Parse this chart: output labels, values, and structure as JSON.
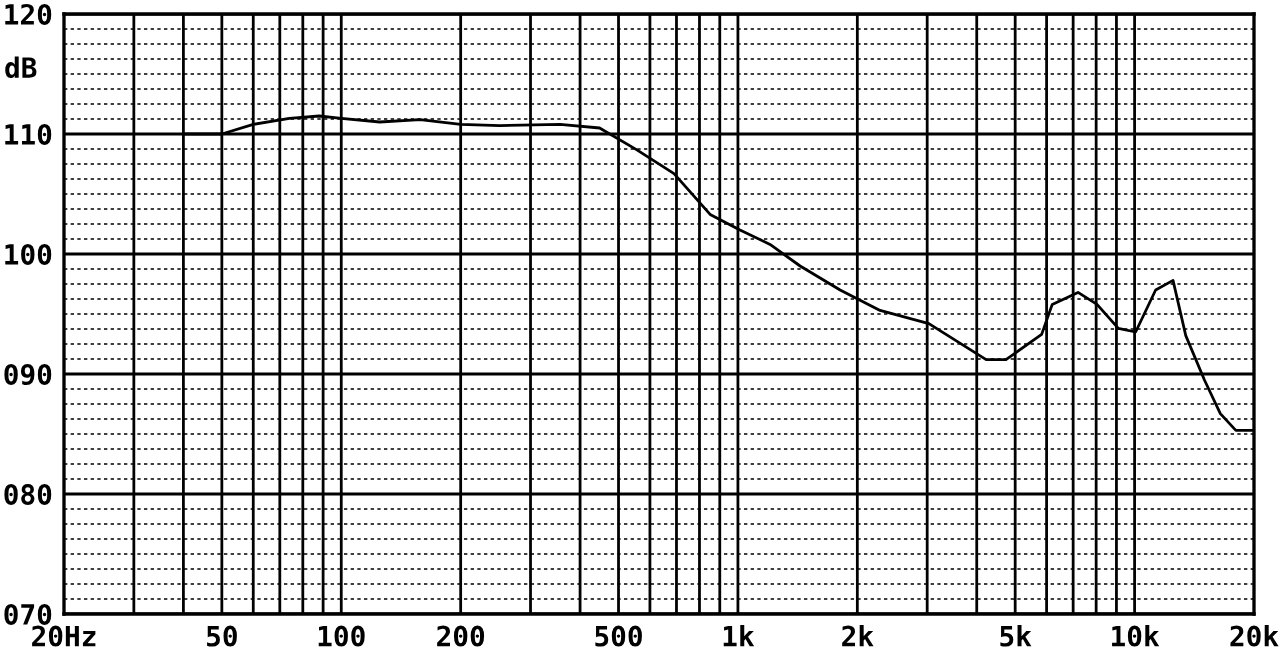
{
  "chart_data": {
    "type": "line",
    "ylabel": "dB",
    "log": "x",
    "x": [
      40,
      50,
      60,
      74,
      88,
      100,
      125,
      158,
      200,
      251,
      356,
      448,
      555,
      690,
      851,
      1012,
      1205,
      1435,
      1810,
      2282,
      3030,
      4225,
      4740,
      5830,
      6200,
      7200,
      8040,
      9100,
      10060,
      11300,
      12500,
      13460,
      15000,
      16450,
      18000,
      20000
    ],
    "series": [
      {
        "color": "#000000",
        "values": [
          110.0,
          110.0,
          110.8,
          111.3,
          111.5,
          111.3,
          111.0,
          111.2,
          110.8,
          110.7,
          110.8,
          110.5,
          108.7,
          106.7,
          103.3,
          102.0,
          100.8,
          99.0,
          97.0,
          95.3,
          94.2,
          91.2,
          91.2,
          93.3,
          95.8,
          96.8,
          95.8,
          93.8,
          93.5,
          97.0,
          97.8,
          93.2,
          89.5,
          86.7,
          85.3,
          85.3
        ]
      }
    ],
    "xlim": [
      20,
      20000
    ],
    "xticks": [
      {
        "value": 20,
        "label": "20Hz"
      },
      50,
      100,
      200,
      500,
      {
        "value": 1000,
        "label": "1k"
      },
      {
        "value": 2000,
        "label": "2k"
      },
      {
        "value": 5000,
        "label": "5k"
      },
      {
        "value": 10000,
        "label": "10k"
      },
      {
        "value": 20000,
        "label": "20k"
      }
    ],
    "ylim": [
      70,
      120
    ],
    "yticks": [
      {
        "value": 70,
        "label": "070"
      },
      {
        "value": 80,
        "label": "080"
      },
      {
        "value": 90,
        "label": "090"
      },
      {
        "value": 100,
        "label": "100"
      },
      {
        "value": 110,
        "label": "110"
      },
      {
        "value": 120,
        "label": "120"
      }
    ],
    "grid": true,
    "legend": false,
    "marker": "none",
    "line_style": "solid"
  }
}
